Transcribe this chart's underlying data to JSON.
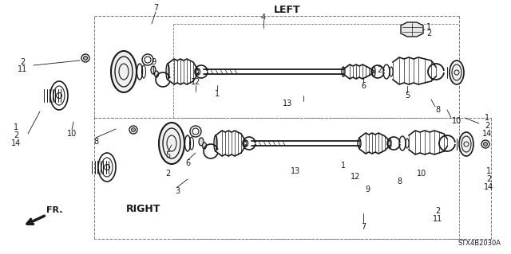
{
  "bg_color": "#ffffff",
  "line_color": "#1a1a1a",
  "label_LEFT": "LEFT",
  "label_RIGHT": "RIGHT",
  "label_FR": "FR.",
  "label_code": "STX4B2030A",
  "fig_w": 6.4,
  "fig_h": 3.19,
  "dpi": 100
}
